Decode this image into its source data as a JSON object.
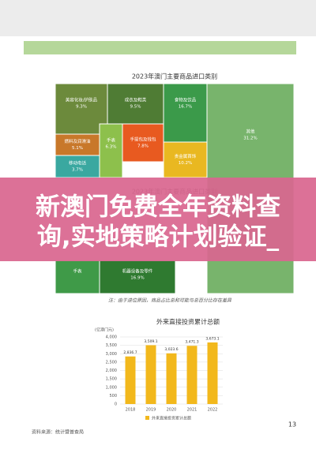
{
  "treemap": {
    "title": "2023年澳门主要商品进口类别",
    "cells": [
      {
        "name": "美容化妆/护肤品",
        "percent": "9.3%"
      },
      {
        "name": "成衣及鞋类",
        "percent": "9.5%"
      },
      {
        "name": "食物及饮品",
        "percent": "16.7%"
      },
      {
        "name": "其他",
        "percent": "31.2%"
      },
      {
        "name": "燃料及润滑油",
        "percent": "5.1%"
      },
      {
        "name": "手表",
        "percent": "6.3%"
      },
      {
        "name": "手提包及钱包",
        "percent": "7.8%"
      },
      {
        "name": "贵金属首饰",
        "percent": "10.2%"
      },
      {
        "name": "移动电话",
        "percent": "3.7%"
      }
    ],
    "repeat_title": "2023年澳门主要商品进口类别",
    "lower_cells": [
      {
        "name": "手表",
        "percent": ""
      },
      {
        "name": "机器设备及零件",
        "percent": "16.9%"
      }
    ],
    "note": "注：由于进位原因，商品占比总和可能与总百分比存在差异"
  },
  "banner": {
    "lines": [
      "新澳门免费全年资料查",
      "询,实地策略计划验证_"
    ]
  },
  "chart_data": {
    "type": "bar",
    "title": "外来直接投资累计总额",
    "y_label": "(亿澳门元)",
    "categories": [
      "2018",
      "2019",
      "2020",
      "2021",
      "2022"
    ],
    "values": [
      2836.7,
      3509.1,
      3023.6,
      3471.3,
      3673.1
    ],
    "value_labels": [
      "2,836.7",
      "3,509.1",
      "3,023.6",
      "3,471.3",
      "3,673.1"
    ],
    "color": "#f2b81c",
    "legend": "外来直接投资累计总额",
    "ylim": [
      0,
      4000
    ],
    "yticks": [
      0,
      500,
      {
        "value": 1000,
        "label": "1,000"
      },
      {
        "value": 1500,
        "label": "1,500"
      },
      {
        "value": 2000,
        "label": "2,000"
      },
      {
        "value": 2500,
        "label": "2,500"
      },
      {
        "value": 3000,
        "label": "3,000"
      },
      {
        "value": 3500,
        "label": "3,500"
      },
      {
        "value": 4000,
        "label": "4,000"
      }
    ]
  },
  "source": "资料来源：统计暨普查局",
  "page_number": "13"
}
